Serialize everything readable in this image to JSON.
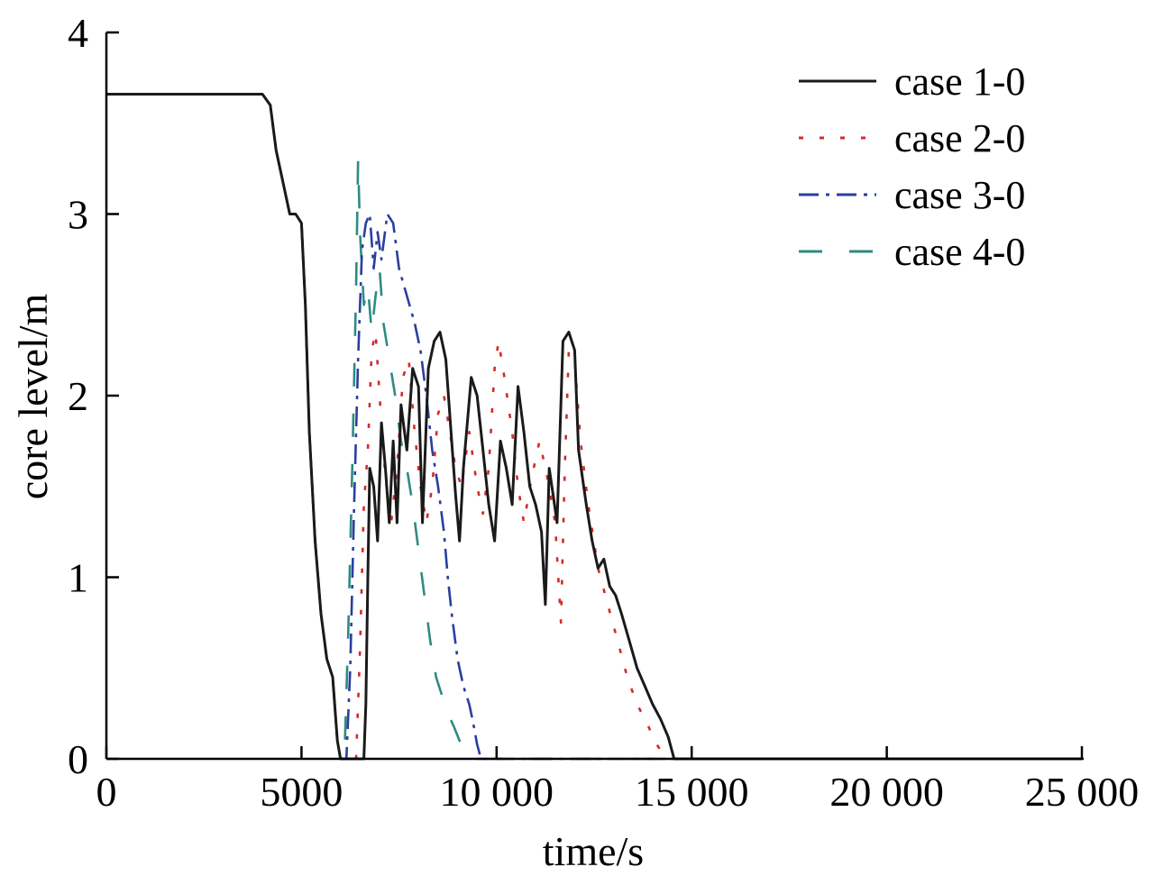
{
  "chart_data": {
    "type": "line",
    "xlabel": "time/s",
    "ylabel": "core level/m",
    "xlim": [
      0,
      25000
    ],
    "ylim": [
      0,
      4
    ],
    "xticks": [
      {
        "value": 0,
        "label": "0"
      },
      {
        "value": 5000,
        "label": "5000"
      },
      {
        "value": 10000,
        "label": "10 000"
      },
      {
        "value": 15000,
        "label": "15 000"
      },
      {
        "value": 20000,
        "label": "20 000"
      },
      {
        "value": 25000,
        "label": "25 000"
      }
    ],
    "yticks": [
      {
        "value": 0,
        "label": "0"
      },
      {
        "value": 1,
        "label": "1"
      },
      {
        "value": 2,
        "label": "2"
      },
      {
        "value": 3,
        "label": "3"
      },
      {
        "value": 4,
        "label": "4"
      }
    ],
    "grid": false,
    "legend_position": "top-right",
    "series": [
      {
        "name": "case 1-0",
        "color": "#1a1a1a",
        "dash": "solid",
        "points": [
          [
            0,
            3.66
          ],
          [
            4000,
            3.66
          ],
          [
            4200,
            3.6
          ],
          [
            4350,
            3.35
          ],
          [
            4500,
            3.2
          ],
          [
            4700,
            3.0
          ],
          [
            4850,
            3.0
          ],
          [
            5000,
            2.95
          ],
          [
            5100,
            2.5
          ],
          [
            5200,
            1.8
          ],
          [
            5350,
            1.2
          ],
          [
            5500,
            0.8
          ],
          [
            5650,
            0.55
          ],
          [
            5800,
            0.45
          ],
          [
            5920,
            0.1
          ],
          [
            6000,
            0.0
          ],
          [
            6600,
            0.0
          ],
          [
            6650,
            0.3
          ],
          [
            6700,
            1.0
          ],
          [
            6750,
            1.6
          ],
          [
            6850,
            1.5
          ],
          [
            6950,
            1.2
          ],
          [
            7050,
            1.85
          ],
          [
            7150,
            1.6
          ],
          [
            7250,
            1.3
          ],
          [
            7350,
            1.75
          ],
          [
            7450,
            1.3
          ],
          [
            7550,
            1.95
          ],
          [
            7700,
            1.7
          ],
          [
            7850,
            2.15
          ],
          [
            8000,
            2.05
          ],
          [
            8100,
            1.3
          ],
          [
            8250,
            2.15
          ],
          [
            8400,
            2.3
          ],
          [
            8550,
            2.35
          ],
          [
            8700,
            2.2
          ],
          [
            8850,
            1.75
          ],
          [
            8950,
            1.45
          ],
          [
            9050,
            1.2
          ],
          [
            9150,
            1.6
          ],
          [
            9350,
            2.1
          ],
          [
            9500,
            2.0
          ],
          [
            9650,
            1.7
          ],
          [
            9800,
            1.4
          ],
          [
            9950,
            1.2
          ],
          [
            10100,
            1.75
          ],
          [
            10250,
            1.6
          ],
          [
            10400,
            1.4
          ],
          [
            10550,
            2.05
          ],
          [
            10700,
            1.8
          ],
          [
            10850,
            1.5
          ],
          [
            11000,
            1.4
          ],
          [
            11150,
            1.25
          ],
          [
            11250,
            0.85
          ],
          [
            11350,
            1.6
          ],
          [
            11450,
            1.45
          ],
          [
            11550,
            1.3
          ],
          [
            11700,
            2.3
          ],
          [
            11850,
            2.35
          ],
          [
            12000,
            2.25
          ],
          [
            12100,
            1.7
          ],
          [
            12300,
            1.4
          ],
          [
            12450,
            1.2
          ],
          [
            12600,
            1.05
          ],
          [
            12750,
            1.1
          ],
          [
            12900,
            0.95
          ],
          [
            13050,
            0.9
          ],
          [
            13200,
            0.8
          ],
          [
            13400,
            0.65
          ],
          [
            13600,
            0.5
          ],
          [
            13800,
            0.4
          ],
          [
            14000,
            0.3
          ],
          [
            14200,
            0.22
          ],
          [
            14400,
            0.12
          ],
          [
            14550,
            0.0
          ],
          [
            15500,
            0.0
          ],
          [
            16000,
            0.0
          ],
          [
            25000,
            0.0
          ]
        ]
      },
      {
        "name": "case 2-0",
        "color": "#d42a2a",
        "dash": "dotted",
        "points": [
          [
            0,
            3.66
          ],
          [
            4000,
            3.66
          ],
          [
            4200,
            3.6
          ],
          [
            4350,
            3.35
          ],
          [
            4500,
            3.2
          ],
          [
            4700,
            3.0
          ],
          [
            4850,
            3.0
          ],
          [
            5000,
            2.95
          ],
          [
            5100,
            2.5
          ],
          [
            5200,
            1.8
          ],
          [
            5350,
            1.2
          ],
          [
            5500,
            0.8
          ],
          [
            5650,
            0.55
          ],
          [
            5800,
            0.45
          ],
          [
            5920,
            0.1
          ],
          [
            6000,
            0.0
          ],
          [
            6400,
            0.0
          ],
          [
            6500,
            0.6
          ],
          [
            6600,
            1.4
          ],
          [
            6700,
            1.7
          ],
          [
            6800,
            2.25
          ],
          [
            6900,
            2.35
          ],
          [
            7000,
            2.0
          ],
          [
            7150,
            1.55
          ],
          [
            7300,
            1.3
          ],
          [
            7450,
            1.6
          ],
          [
            7600,
            2.1
          ],
          [
            7750,
            2.2
          ],
          [
            7900,
            1.8
          ],
          [
            8050,
            1.5
          ],
          [
            8200,
            1.3
          ],
          [
            8350,
            1.5
          ],
          [
            8500,
            1.9
          ],
          [
            8650,
            2.0
          ],
          [
            8800,
            1.8
          ],
          [
            8950,
            1.6
          ],
          [
            9100,
            1.5
          ],
          [
            9300,
            1.8
          ],
          [
            9500,
            1.5
          ],
          [
            9650,
            1.35
          ],
          [
            9800,
            1.6
          ],
          [
            9950,
            2.15
          ],
          [
            10050,
            2.3
          ],
          [
            10200,
            2.1
          ],
          [
            10400,
            1.8
          ],
          [
            10550,
            1.5
          ],
          [
            10700,
            1.3
          ],
          [
            10900,
            1.55
          ],
          [
            11100,
            1.75
          ],
          [
            11300,
            1.55
          ],
          [
            11500,
            1.3
          ],
          [
            11650,
            0.75
          ],
          [
            11750,
            1.6
          ],
          [
            11850,
            2.25
          ],
          [
            12000,
            2.2
          ],
          [
            12150,
            1.75
          ],
          [
            12350,
            1.4
          ],
          [
            12600,
            1.05
          ],
          [
            12850,
            0.85
          ],
          [
            13100,
            0.65
          ],
          [
            13350,
            0.45
          ],
          [
            13600,
            0.3
          ],
          [
            13850,
            0.2
          ],
          [
            14050,
            0.1
          ],
          [
            14250,
            0.03
          ],
          [
            14400,
            0.0
          ],
          [
            25000,
            0.0
          ]
        ]
      },
      {
        "name": "case 3-0",
        "color": "#2a3f9e",
        "dash": "dashdot",
        "points": [
          [
            0,
            3.66
          ],
          [
            4000,
            3.66
          ],
          [
            4200,
            3.6
          ],
          [
            4350,
            3.35
          ],
          [
            4500,
            3.2
          ],
          [
            4700,
            3.0
          ],
          [
            4850,
            3.0
          ],
          [
            5000,
            2.95
          ],
          [
            5100,
            2.5
          ],
          [
            5200,
            1.8
          ],
          [
            5350,
            1.2
          ],
          [
            5500,
            0.8
          ],
          [
            5650,
            0.55
          ],
          [
            5800,
            0.45
          ],
          [
            5920,
            0.1
          ],
          [
            6000,
            0.0
          ],
          [
            6150,
            0.0
          ],
          [
            6250,
            0.5
          ],
          [
            6350,
            1.4
          ],
          [
            6450,
            2.2
          ],
          [
            6550,
            2.8
          ],
          [
            6650,
            2.95
          ],
          [
            6750,
            3.0
          ],
          [
            6850,
            2.7
          ],
          [
            6950,
            2.9
          ],
          [
            7050,
            2.75
          ],
          [
            7200,
            3.0
          ],
          [
            7350,
            2.95
          ],
          [
            7500,
            2.7
          ],
          [
            7700,
            2.55
          ],
          [
            7900,
            2.4
          ],
          [
            8050,
            2.25
          ],
          [
            8200,
            2.0
          ],
          [
            8350,
            1.7
          ],
          [
            8500,
            1.5
          ],
          [
            8650,
            1.25
          ],
          [
            8750,
            1.0
          ],
          [
            8850,
            0.8
          ],
          [
            9000,
            0.55
          ],
          [
            9150,
            0.4
          ],
          [
            9300,
            0.3
          ],
          [
            9400,
            0.2
          ],
          [
            9500,
            0.08
          ],
          [
            9600,
            0.0
          ],
          [
            25000,
            0.0
          ]
        ]
      },
      {
        "name": "case 4-0",
        "color": "#2f8a84",
        "dash": "longdash",
        "points": [
          [
            0,
            3.66
          ],
          [
            4000,
            3.66
          ],
          [
            4200,
            3.6
          ],
          [
            4350,
            3.35
          ],
          [
            4500,
            3.2
          ],
          [
            4700,
            3.0
          ],
          [
            4850,
            3.0
          ],
          [
            5000,
            2.95
          ],
          [
            5100,
            2.5
          ],
          [
            5200,
            1.8
          ],
          [
            5350,
            1.2
          ],
          [
            5500,
            0.8
          ],
          [
            5650,
            0.55
          ],
          [
            5800,
            0.45
          ],
          [
            5920,
            0.1
          ],
          [
            6000,
            0.0
          ],
          [
            6100,
            0.0
          ],
          [
            6200,
            0.7
          ],
          [
            6300,
            1.6
          ],
          [
            6400,
            2.6
          ],
          [
            6450,
            3.3
          ],
          [
            6500,
            2.9
          ],
          [
            6600,
            2.5
          ],
          [
            6700,
            2.6
          ],
          [
            6800,
            2.35
          ],
          [
            6900,
            2.55
          ],
          [
            7000,
            2.7
          ],
          [
            7100,
            2.4
          ],
          [
            7250,
            2.2
          ],
          [
            7400,
            2.0
          ],
          [
            7550,
            1.75
          ],
          [
            7700,
            1.6
          ],
          [
            7850,
            1.4
          ],
          [
            8000,
            1.15
          ],
          [
            8150,
            0.9
          ],
          [
            8300,
            0.65
          ],
          [
            8450,
            0.45
          ],
          [
            8600,
            0.35
          ],
          [
            8750,
            0.25
          ],
          [
            8900,
            0.18
          ],
          [
            9050,
            0.1
          ],
          [
            9200,
            0.03
          ],
          [
            9300,
            0.0
          ],
          [
            25000,
            0.0
          ]
        ]
      }
    ]
  }
}
